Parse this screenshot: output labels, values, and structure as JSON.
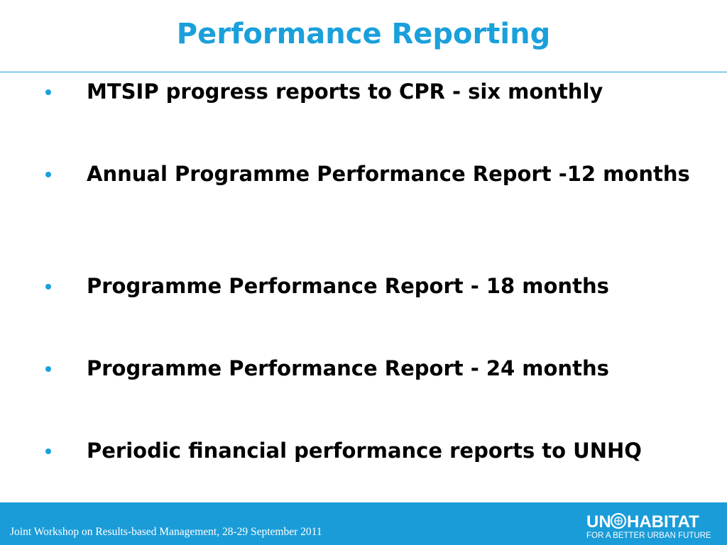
{
  "slide": {
    "title": "Performance Reporting",
    "bullets": [
      "MTSIP progress reports to CPR - six monthly",
      "Annual Programme Performance Report -12 months",
      "Programme Performance Report - 18 months",
      "Programme Performance Report - 24 months",
      "Periodic financial performance reports to UNHQ"
    ]
  },
  "footer": {
    "text": "Joint Workshop on Results-based Management, 28-29 September 2011",
    "logo_line1": "UN HABITAT",
    "logo_line2": "FOR A BETTER URBAN FUTURE",
    "background": "#1a9cd8"
  },
  "colors": {
    "title": "#1aa0db",
    "bullet": "#1aa0db",
    "text": "#000000",
    "rule": "#1a9fd9"
  }
}
